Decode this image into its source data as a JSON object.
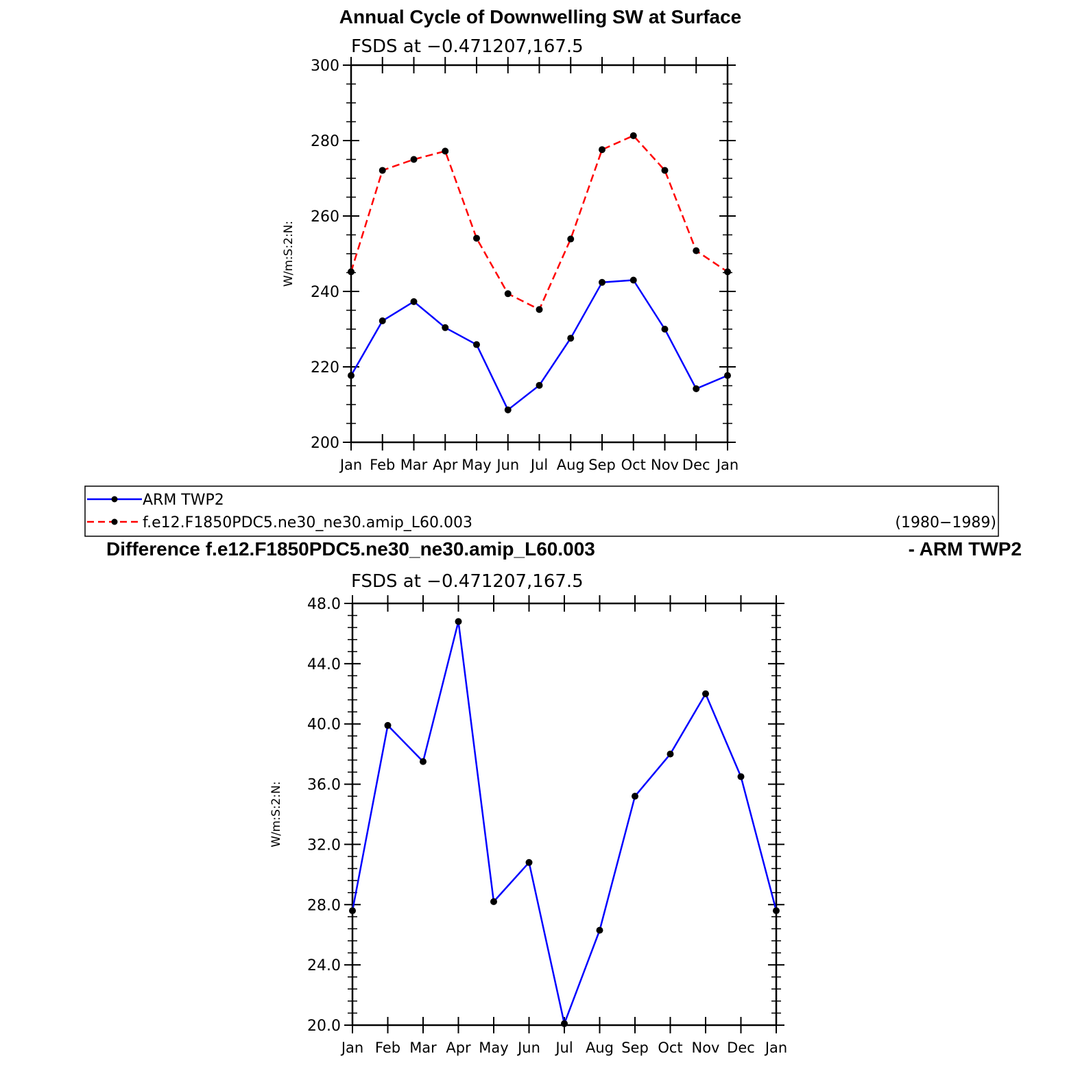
{
  "chart_data": [
    {
      "type": "line",
      "title": "Annual Cycle of Downwelling SW at Surface",
      "subtitle": "FSDS at −0.471207,167.5",
      "ylabel": "W/m:S:2:N:",
      "ylim": [
        200,
        300
      ],
      "yticks": [
        "200",
        "220",
        "240",
        "260",
        "280",
        "300"
      ],
      "categories": [
        "Jan",
        "Feb",
        "Mar",
        "Apr",
        "May",
        "Jun",
        "Jul",
        "Aug",
        "Sep",
        "Oct",
        "Nov",
        "Dec",
        "Jan"
      ],
      "grid": false,
      "series": [
        {
          "name": "ARM TWP2",
          "color": "#0000ff",
          "line_style": "solid",
          "values": [
            217.7,
            232.2,
            237.3,
            230.4,
            225.9,
            208.6,
            215.1,
            227.6,
            242.4,
            243.0,
            230.0,
            214.2,
            217.7
          ]
        },
        {
          "name": "f.e12.F1850PDC5.ne30_ne30.amip_L60.003",
          "color": "#ff0000",
          "line_style": "dashed",
          "values": [
            245.2,
            272.1,
            275.0,
            277.2,
            254.1,
            239.4,
            235.2,
            253.9,
            277.6,
            281.3,
            272.1,
            250.8,
            245.2
          ]
        }
      ]
    },
    {
      "type": "line",
      "title": "Difference f.e12.F1850PDC5.ne30_ne30.amip_L60.003",
      "title_right": "- ARM TWP2",
      "subtitle": "FSDS at −0.471207,167.5",
      "ylabel": "W/m:S:2:N:",
      "ylim": [
        20,
        48
      ],
      "yticks": [
        "20.0",
        "24.0",
        "28.0",
        "32.0",
        "36.0",
        "40.0",
        "44.0",
        "48.0"
      ],
      "categories": [
        "Jan",
        "Feb",
        "Mar",
        "Apr",
        "May",
        "Jun",
        "Jul",
        "Aug",
        "Sep",
        "Oct",
        "Nov",
        "Dec",
        "Jan"
      ],
      "grid": false,
      "series": [
        {
          "color": "#0000ff",
          "line_style": "solid",
          "values": [
            27.6,
            39.9,
            37.5,
            46.8,
            28.2,
            30.8,
            20.1,
            26.3,
            35.2,
            38.0,
            42.0,
            36.5,
            27.6
          ]
        }
      ]
    }
  ],
  "legend": {
    "items": [
      {
        "label": "ARM TWP2",
        "color": "#0000ff",
        "line_style": "solid"
      },
      {
        "label": "f.e12.F1850PDC5.ne30_ne30.amip_L60.003",
        "color": "#ff0000",
        "line_style": "dashed"
      }
    ],
    "period": "(1980−1989)"
  }
}
